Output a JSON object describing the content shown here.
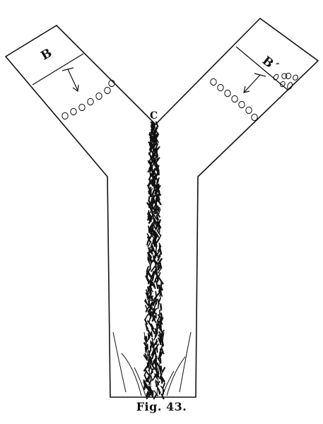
{
  "labels": {
    "left_branch": "B",
    "right_branch": "B´",
    "junction": "C"
  },
  "caption": "Fig. 43.",
  "colors": {
    "ink": "#111111",
    "paper": "#ffffff"
  }
}
